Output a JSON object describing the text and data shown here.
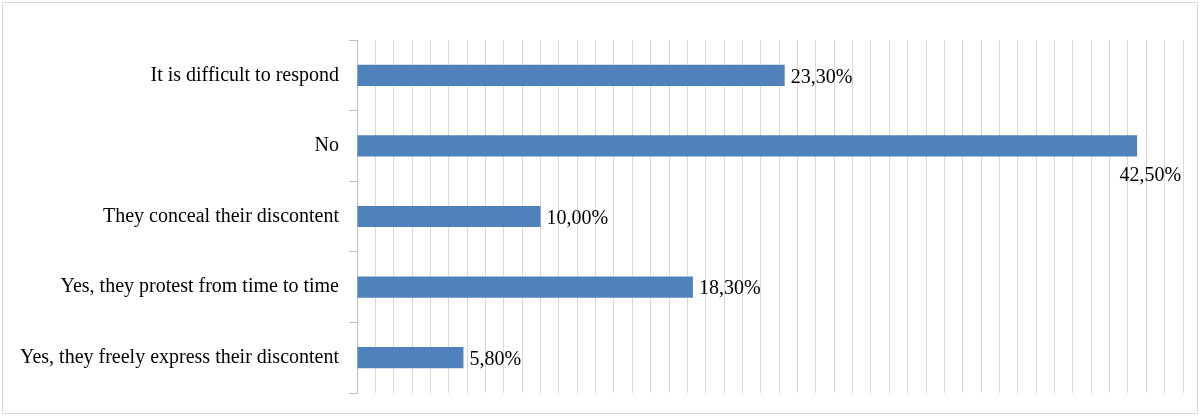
{
  "chart_data": {
    "type": "bar",
    "orientation": "horizontal",
    "categories": [
      "It is difficult to respond",
      "No",
      "They conceal their discontent",
      "Yes, they protest from time to time",
      "Yes, they freely express their discontent"
    ],
    "values": [
      23.3,
      42.5,
      10.0,
      18.3,
      5.8
    ],
    "value_labels": [
      "23,30%",
      "42,50%",
      "10,00%",
      "18,30%",
      "5,80%"
    ],
    "color": "#4f81bd",
    "xlim": [
      0,
      45
    ],
    "xticks": [
      {
        "value": 0,
        "label": null
      },
      {
        "value": 1,
        "label": null
      },
      {
        "value": 2,
        "label": null
      },
      {
        "value": 3,
        "label": null
      },
      {
        "value": 4,
        "label": null
      },
      {
        "value": 5,
        "label": null
      },
      {
        "value": 6,
        "label": null
      },
      {
        "value": 7,
        "label": null
      },
      {
        "value": 8,
        "label": null
      },
      {
        "value": 9,
        "label": null
      },
      {
        "value": 10,
        "label": null
      },
      {
        "value": 11,
        "label": null
      },
      {
        "value": 12,
        "label": null
      },
      {
        "value": 13,
        "label": null
      },
      {
        "value": 14,
        "label": null
      },
      {
        "value": 15,
        "label": null
      },
      {
        "value": 16,
        "label": null
      },
      {
        "value": 17,
        "label": null
      },
      {
        "value": 18,
        "label": null
      },
      {
        "value": 19,
        "label": null
      },
      {
        "value": 20,
        "label": null
      },
      {
        "value": 21,
        "label": null
      },
      {
        "value": 22,
        "label": null
      },
      {
        "value": 23,
        "label": null
      },
      {
        "value": 24,
        "label": null
      },
      {
        "value": 25,
        "label": null
      },
      {
        "value": 26,
        "label": null
      },
      {
        "value": 27,
        "label": null
      },
      {
        "value": 28,
        "label": null
      },
      {
        "value": 29,
        "label": null
      },
      {
        "value": 30,
        "label": null
      },
      {
        "value": 31,
        "label": null
      },
      {
        "value": 32,
        "label": null
      },
      {
        "value": 33,
        "label": null
      },
      {
        "value": 34,
        "label": null
      },
      {
        "value": 35,
        "label": null
      },
      {
        "value": 36,
        "label": null
      },
      {
        "value": 37,
        "label": null
      },
      {
        "value": 38,
        "label": null
      },
      {
        "value": 39,
        "label": null
      },
      {
        "value": 40,
        "label": null
      },
      {
        "value": 41,
        "label": null
      },
      {
        "value": 42,
        "label": null
      },
      {
        "value": 43,
        "label": null
      },
      {
        "value": 44,
        "label": null
      },
      {
        "value": 45,
        "label": null
      }
    ],
    "grid": "x",
    "tick_labels": "y",
    "legend": false
  }
}
